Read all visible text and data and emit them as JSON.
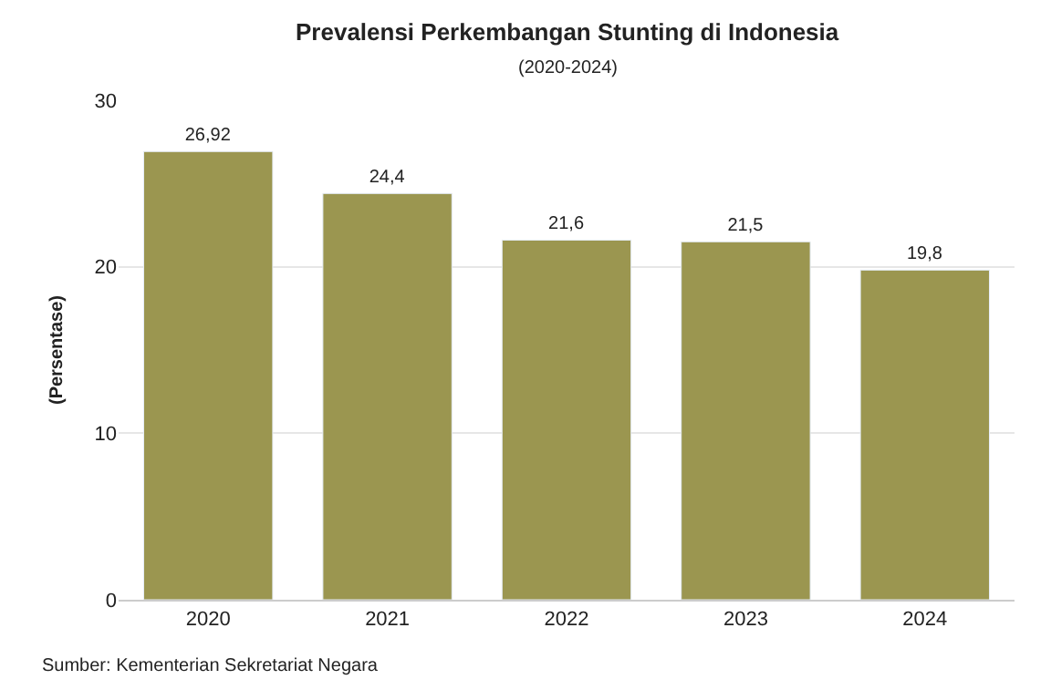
{
  "chart_data": {
    "type": "bar",
    "title": "Prevalensi Perkembangan Stunting di Indonesia",
    "subtitle": "(2020-2024)",
    "ylabel": "(Persentase)",
    "categories": [
      "2020",
      "2021",
      "2022",
      "2023",
      "2024"
    ],
    "values": [
      26.92,
      24.4,
      21.6,
      21.5,
      19.8
    ],
    "value_labels": [
      "26,92",
      "24,4",
      "21,6",
      "21,5",
      "19,8"
    ],
    "color": "#9b9650",
    "ylim": [
      0,
      30
    ],
    "yticks": [
      0,
      10,
      20,
      30
    ],
    "grid": "y",
    "annotations": [
      "Sumber: Kementerian Sekretariat Negara"
    ]
  }
}
